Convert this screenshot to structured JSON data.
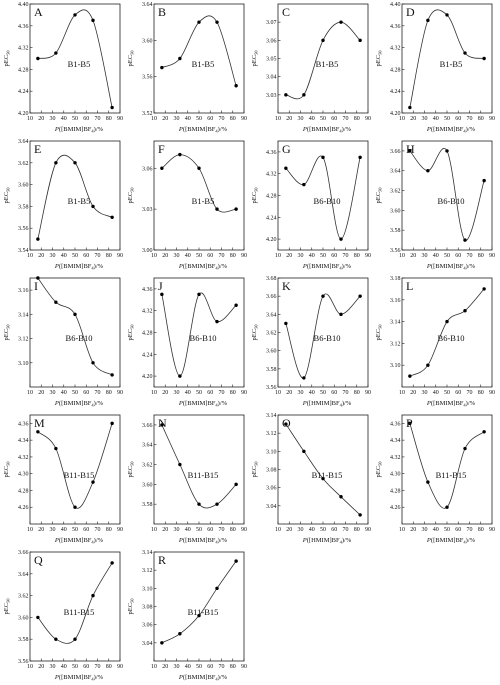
{
  "chart_data": [
    {
      "type": "line",
      "panel": "A",
      "group_label": "B1-B5",
      "xlabel": "P([BMIM]BF4)/%",
      "ylabel": "pEC50",
      "xlim": [
        10,
        90
      ],
      "ylim": [
        4.2,
        4.4
      ],
      "xticks": [
        10,
        20,
        30,
        40,
        50,
        60,
        70,
        80,
        90
      ],
      "yticks": [
        4.2,
        4.24,
        4.28,
        4.32,
        4.36,
        4.4
      ],
      "x": [
        17,
        33,
        50,
        66,
        83
      ],
      "y": [
        4.3,
        4.31,
        4.38,
        4.37,
        4.21
      ]
    },
    {
      "type": "line",
      "panel": "B",
      "group_label": "B1-B5",
      "xlabel": "P([BMIM]BF4)/%",
      "ylabel": "pEC50",
      "xlim": [
        10,
        90
      ],
      "ylim": [
        3.52,
        3.64
      ],
      "xticks": [
        10,
        20,
        30,
        40,
        50,
        60,
        70,
        80,
        90
      ],
      "yticks": [
        3.52,
        3.56,
        3.6,
        3.64
      ],
      "x": [
        17,
        33,
        50,
        66,
        83
      ],
      "y": [
        3.57,
        3.58,
        3.62,
        3.62,
        3.55
      ]
    },
    {
      "type": "line",
      "panel": "C",
      "group_label": "B1-B5",
      "xlabel": "P([BMIM]BF4)/%",
      "ylabel": "pEC50",
      "xlim": [
        10,
        90
      ],
      "ylim": [
        3.02,
        3.08
      ],
      "xticks": [
        10,
        20,
        30,
        40,
        50,
        60,
        70,
        80,
        90
      ],
      "yticks": [
        3.03,
        3.04,
        3.05,
        3.06,
        3.07
      ],
      "x": [
        17,
        33,
        50,
        66,
        83
      ],
      "y": [
        3.03,
        3.03,
        3.06,
        3.07,
        3.06
      ]
    },
    {
      "type": "line",
      "panel": "D",
      "group_label": "B1-B5",
      "xlabel": "P([BMIM]BF4)/%",
      "ylabel": "pEC50",
      "xlim": [
        10,
        90
      ],
      "ylim": [
        4.2,
        4.4
      ],
      "xticks": [
        10,
        20,
        30,
        40,
        50,
        60,
        70,
        80,
        90
      ],
      "yticks": [
        4.2,
        4.24,
        4.28,
        4.32,
        4.36,
        4.4
      ],
      "x": [
        17,
        33,
        50,
        66,
        83
      ],
      "y": [
        4.21,
        4.37,
        4.38,
        4.31,
        4.3
      ]
    },
    {
      "type": "line",
      "panel": "E",
      "group_label": "B1-B5",
      "xlabel": "P([BMIM]BF4)/%",
      "ylabel": "pEC50",
      "xlim": [
        10,
        90
      ],
      "ylim": [
        3.54,
        3.64
      ],
      "xticks": [
        10,
        20,
        30,
        40,
        50,
        60,
        70,
        80,
        90
      ],
      "yticks": [
        3.54,
        3.56,
        3.58,
        3.6,
        3.62,
        3.64
      ],
      "x": [
        17,
        33,
        50,
        66,
        83
      ],
      "y": [
        3.55,
        3.62,
        3.62,
        3.58,
        3.57
      ]
    },
    {
      "type": "line",
      "panel": "F",
      "group_label": "B1-B5",
      "xlabel": "P([BMIM]BF4)/%",
      "ylabel": "pEC50",
      "xlim": [
        10,
        90
      ],
      "ylim": [
        3.0,
        3.08
      ],
      "xticks": [
        10,
        20,
        30,
        40,
        50,
        60,
        70,
        80,
        90
      ],
      "yticks": [
        3.0,
        3.03,
        3.06
      ],
      "x": [
        17,
        33,
        50,
        66,
        83
      ],
      "y": [
        3.06,
        3.07,
        3.06,
        3.03,
        3.03
      ]
    },
    {
      "type": "line",
      "panel": "G",
      "group_label": "B6-B10",
      "xlabel": "P([BMIM]BF4)/%",
      "ylabel": "pEC50",
      "xlim": [
        10,
        90
      ],
      "ylim": [
        4.18,
        4.38
      ],
      "xticks": [
        10,
        20,
        30,
        40,
        50,
        60,
        70,
        80,
        90
      ],
      "yticks": [
        4.2,
        4.24,
        4.28,
        4.32,
        4.36
      ],
      "x": [
        17,
        33,
        50,
        66,
        83
      ],
      "y": [
        4.33,
        4.3,
        4.35,
        4.2,
        4.35
      ]
    },
    {
      "type": "line",
      "panel": "H",
      "group_label": "B6-B10",
      "xlabel": "P([BMIM]BF4)/%",
      "ylabel": "pEC50",
      "xlim": [
        10,
        90
      ],
      "ylim": [
        3.56,
        3.67
      ],
      "xticks": [
        10,
        20,
        30,
        40,
        50,
        60,
        70,
        80,
        90
      ],
      "yticks": [
        3.56,
        3.58,
        3.6,
        3.62,
        3.64,
        3.66
      ],
      "x": [
        17,
        33,
        50,
        66,
        83
      ],
      "y": [
        3.66,
        3.64,
        3.66,
        3.57,
        3.63
      ]
    },
    {
      "type": "line",
      "panel": "I",
      "group_label": "B6-B10",
      "xlabel": "P([BMIM]BF4)/%",
      "ylabel": "pEC50",
      "xlim": [
        10,
        90
      ],
      "ylim": [
        3.08,
        3.17
      ],
      "xticks": [
        10,
        20,
        30,
        40,
        50,
        60,
        70,
        80,
        90
      ],
      "yticks": [
        3.1,
        3.12,
        3.14,
        3.16
      ],
      "x": [
        17,
        33,
        50,
        66,
        83
      ],
      "y": [
        3.17,
        3.15,
        3.14,
        3.1,
        3.09
      ]
    },
    {
      "type": "line",
      "panel": "J",
      "group_label": "B6-B10",
      "xlabel": "P([BMIM]BF4)/%",
      "ylabel": "pEC50",
      "xlim": [
        10,
        90
      ],
      "ylim": [
        4.18,
        4.38
      ],
      "xticks": [
        10,
        20,
        30,
        40,
        50,
        60,
        70,
        80,
        90
      ],
      "yticks": [
        4.2,
        4.24,
        4.28,
        4.32,
        4.36
      ],
      "x": [
        17,
        33,
        50,
        66,
        83
      ],
      "y": [
        4.35,
        4.2,
        4.35,
        4.3,
        4.33
      ]
    },
    {
      "type": "line",
      "panel": "K",
      "group_label": "B6-B10",
      "xlabel": "P([HMIM]BF4)/%",
      "ylabel": "pEC50",
      "xlim": [
        10,
        90
      ],
      "ylim": [
        3.56,
        3.68
      ],
      "xticks": [
        10,
        20,
        30,
        40,
        50,
        60,
        70,
        80,
        90
      ],
      "yticks": [
        3.56,
        3.58,
        3.6,
        3.62,
        3.64,
        3.66,
        3.68
      ],
      "x": [
        17,
        33,
        50,
        66,
        83
      ],
      "y": [
        3.63,
        3.57,
        3.66,
        3.64,
        3.66
      ]
    },
    {
      "type": "line",
      "panel": "L",
      "group_label": "B6-B10",
      "xlabel": "P([BMIM]BF4)/%",
      "ylabel": "pEC50",
      "xlim": [
        10,
        90
      ],
      "ylim": [
        3.08,
        3.18
      ],
      "xticks": [
        10,
        20,
        30,
        40,
        50,
        60,
        70,
        80,
        90
      ],
      "yticks": [
        3.1,
        3.12,
        3.14,
        3.16,
        3.18
      ],
      "x": [
        17,
        33,
        50,
        66,
        83
      ],
      "y": [
        3.09,
        3.1,
        3.14,
        3.15,
        3.17
      ]
    },
    {
      "type": "line",
      "panel": "M",
      "group_label": "B11-B15",
      "xlabel": "P([BMIM]BF4)/%",
      "ylabel": "pEC50",
      "xlim": [
        10,
        90
      ],
      "ylim": [
        4.24,
        4.37
      ],
      "xticks": [
        10,
        20,
        30,
        40,
        50,
        60,
        70,
        80,
        90
      ],
      "yticks": [
        4.26,
        4.28,
        4.3,
        4.32,
        4.34,
        4.36
      ],
      "x": [
        17,
        33,
        50,
        66,
        83
      ],
      "y": [
        4.35,
        4.33,
        4.26,
        4.29,
        4.36
      ]
    },
    {
      "type": "line",
      "panel": "N",
      "group_label": "B11-B15",
      "xlabel": "P([BMIM]BF4)/%",
      "ylabel": "pEC50",
      "xlim": [
        10,
        90
      ],
      "ylim": [
        3.56,
        3.67
      ],
      "xticks": [
        10,
        20,
        30,
        40,
        50,
        60,
        70,
        80,
        90
      ],
      "yticks": [
        3.58,
        3.6,
        3.62,
        3.64,
        3.66
      ],
      "x": [
        17,
        33,
        50,
        66,
        83
      ],
      "y": [
        3.66,
        3.62,
        3.58,
        3.58,
        3.6
      ]
    },
    {
      "type": "line",
      "panel": "O",
      "group_label": "B11-B15",
      "xlabel": "P([HMIM]BF4)/%",
      "ylabel": "pEC50",
      "xlim": [
        10,
        90
      ],
      "ylim": [
        3.02,
        3.14
      ],
      "xticks": [
        10,
        20,
        30,
        40,
        50,
        60,
        70,
        80,
        90
      ],
      "yticks": [
        3.04,
        3.06,
        3.08,
        3.1,
        3.12,
        3.14
      ],
      "x": [
        17,
        33,
        50,
        66,
        83
      ],
      "y": [
        3.13,
        3.1,
        3.07,
        3.05,
        3.03
      ]
    },
    {
      "type": "line",
      "panel": "P",
      "group_label": "B11-B15",
      "xlabel": "P([BMIM]BF4)/%",
      "ylabel": "pEC50",
      "xlim": [
        10,
        90
      ],
      "ylim": [
        4.24,
        4.37
      ],
      "xticks": [
        10,
        20,
        30,
        40,
        50,
        60,
        70,
        80,
        90
      ],
      "yticks": [
        4.26,
        4.28,
        4.3,
        4.32,
        4.34,
        4.36
      ],
      "x": [
        17,
        33,
        50,
        66,
        83
      ],
      "y": [
        4.36,
        4.29,
        4.26,
        4.33,
        4.35
      ]
    },
    {
      "type": "line",
      "panel": "Q",
      "group_label": "B11-B15",
      "xlabel": "P([BMIM]BF4)/%",
      "ylabel": "pEC50",
      "xlim": [
        10,
        90
      ],
      "ylim": [
        3.56,
        3.66
      ],
      "xticks": [
        10,
        20,
        30,
        40,
        50,
        60,
        70,
        80,
        90
      ],
      "yticks": [
        3.56,
        3.58,
        3.6,
        3.62,
        3.64,
        3.66
      ],
      "x": [
        17,
        33,
        50,
        66,
        83
      ],
      "y": [
        3.6,
        3.58,
        3.58,
        3.62,
        3.65
      ]
    },
    {
      "type": "line",
      "panel": "R",
      "group_label": "B11-B15",
      "xlabel": "P([BMIM]BF4)/%",
      "ylabel": "pEC50",
      "xlim": [
        10,
        90
      ],
      "ylim": [
        3.02,
        3.14
      ],
      "xticks": [
        10,
        20,
        30,
        40,
        50,
        60,
        70,
        80,
        90
      ],
      "yticks": [
        3.04,
        3.06,
        3.08,
        3.1,
        3.12,
        3.14
      ],
      "x": [
        17,
        33,
        50,
        66,
        83
      ],
      "y": [
        3.04,
        3.05,
        3.07,
        3.1,
        3.13
      ]
    }
  ]
}
